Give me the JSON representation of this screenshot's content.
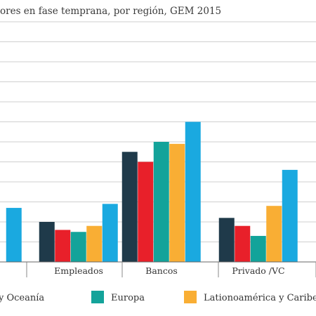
{
  "chart_data": {
    "type": "bar",
    "title": "ores en fase temprana, por región, GEM 2015",
    "categories": [
      "",
      "Empleados",
      "Bancos",
      "Privado /VC"
    ],
    "ylim": [
      0,
      12
    ],
    "grid": true,
    "series": [
      {
        "name": "",
        "color": "#1f3a4a",
        "values": [
          null,
          2.0,
          5.5,
          2.2
        ]
      },
      {
        "name": "",
        "color": "#e8202a",
        "values": [
          null,
          1.6,
          5.0,
          1.8
        ]
      },
      {
        "name": "Europa",
        "color": "#13a39a",
        "values": [
          null,
          1.5,
          6.0,
          1.3
        ]
      },
      {
        "name": "Lationoamérica y Caribe",
        "color": "#f9ae34",
        "values": [
          null,
          1.8,
          5.9,
          2.8
        ]
      },
      {
        "name": "",
        "color": "#1aa9e0",
        "values": [
          2.7,
          2.9,
          7.0,
          4.6
        ]
      }
    ],
    "legend": [
      {
        "label": "y Oceanía",
        "color": "#e8202a"
      },
      {
        "label": "Europa",
        "color": "#13a39a"
      },
      {
        "label": "Lationoamérica y Caribe",
        "color": "#f9ae34"
      }
    ]
  }
}
